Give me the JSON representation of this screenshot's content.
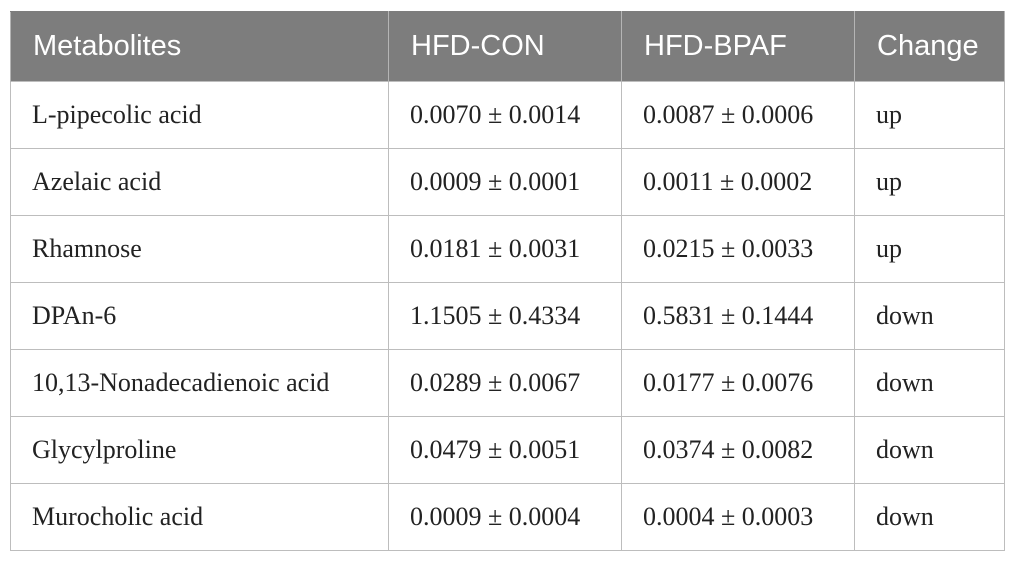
{
  "table": {
    "headers": [
      "Metabolites",
      "HFD-CON",
      "HFD-BPAF",
      "Change"
    ],
    "rows": [
      [
        "L-pipecolic acid",
        "0.0070 ± 0.0014",
        "0.0087 ± 0.0006",
        "up"
      ],
      [
        "Azelaic acid",
        "0.0009 ± 0.0001",
        "0.0011 ± 0.0002",
        "up"
      ],
      [
        "Rhamnose",
        "0.0181 ± 0.0031",
        "0.0215 ± 0.0033",
        "up"
      ],
      [
        "DPAn-6",
        "1.1505 ± 0.4334",
        "0.5831 ± 0.1444",
        "down"
      ],
      [
        "10,13-Nonadecadienoic acid",
        "0.0289 ± 0.0067",
        "0.0177 ± 0.0076",
        "down"
      ],
      [
        "Glycylproline",
        "0.0479 ± 0.0051",
        "0.0374 ± 0.0082",
        "down"
      ],
      [
        "Murocholic acid",
        "0.0009 ± 0.0004",
        "0.0004 ± 0.0003",
        "down"
      ]
    ]
  },
  "colors": {
    "header_bg": "#7d7d7d",
    "header_text": "#ffffff",
    "border": "#bdbdbd"
  }
}
